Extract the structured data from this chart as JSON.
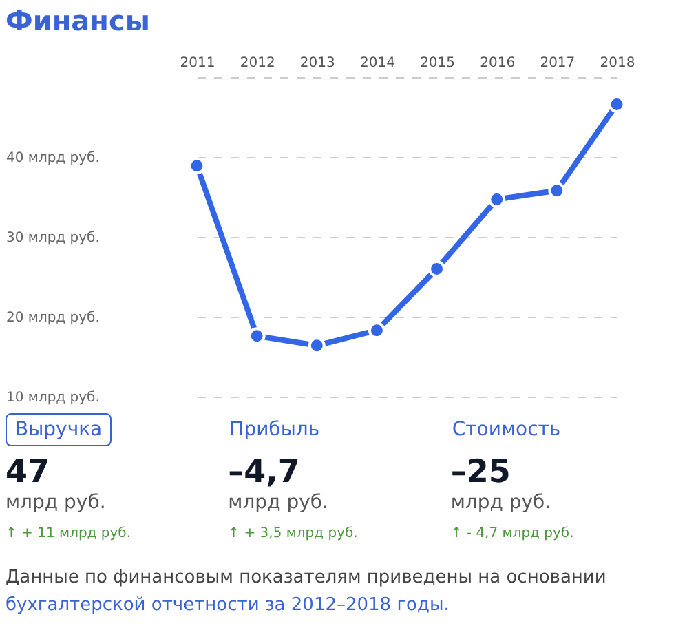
{
  "chart_data": {
    "type": "line",
    "title": "Финансы",
    "categories": [
      "2011",
      "2012",
      "2013",
      "2014",
      "2015",
      "2016",
      "2017",
      "2018"
    ],
    "series": [
      {
        "color": "#3366e6",
        "values": [
          38.9,
          17.6,
          16.4,
          18.3,
          26.0,
          34.7,
          35.8,
          46.6
        ]
      }
    ],
    "ylim": [
      10,
      50
    ],
    "yticks": [
      {
        "value": 10,
        "label": "10 млрд руб."
      },
      {
        "value": 20,
        "label": "20 млрд руб."
      },
      {
        "value": 30,
        "label": "30 млрд руб."
      },
      {
        "value": 40,
        "label": "40 млрд руб."
      },
      {
        "value": 50,
        "label": null
      }
    ],
    "grid": "y",
    "marker": "circle",
    "line_style": "solid",
    "annotations": [
      "Выручка",
      "47",
      "млрд руб.",
      "↑ + 11 млрд руб.",
      "Прибыль",
      "–4,7",
      "млрд руб.",
      "↑ + 3,5 млрд руб.",
      "Стоимость",
      "–25",
      "млрд руб.",
      "↑ - 4,7 млрд руб.",
      "Данные по финансовым показателям приведены на основании",
      "бухгалтерской отчетности за 2012–2018 годы."
    ]
  }
}
